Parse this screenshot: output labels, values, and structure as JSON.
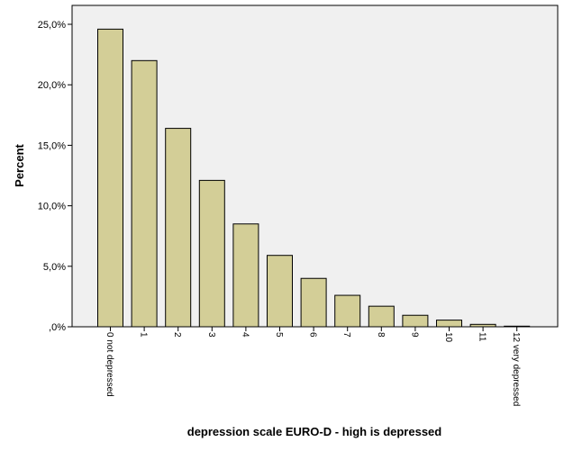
{
  "chart_data": {
    "type": "bar",
    "title": "",
    "xlabel": "depression scale EURO-D - high is depressed",
    "ylabel": "Percent",
    "ylim": [
      0,
      25
    ],
    "yticks": [
      0,
      5,
      10,
      15,
      20,
      25
    ],
    "ytick_labels": [
      ",0%",
      "5,0%",
      "10,0%",
      "15,0%",
      "20,0%",
      "25,0%"
    ],
    "grid": false,
    "categories": [
      "0 not depressed",
      "1",
      "2",
      "3",
      "4",
      "5",
      "6",
      "7",
      "8",
      "9",
      "10",
      "11",
      "12 very depressed"
    ],
    "values": [
      24.6,
      22.0,
      16.4,
      12.1,
      8.5,
      5.9,
      4.0,
      2.6,
      1.7,
      0.95,
      0.55,
      0.2,
      0.05
    ],
    "colors": {
      "bar_fill": "#D3CE97",
      "bar_stroke": "#000000",
      "plot_background": "#F0F0F0",
      "page_background": "#FFFFFF"
    }
  }
}
